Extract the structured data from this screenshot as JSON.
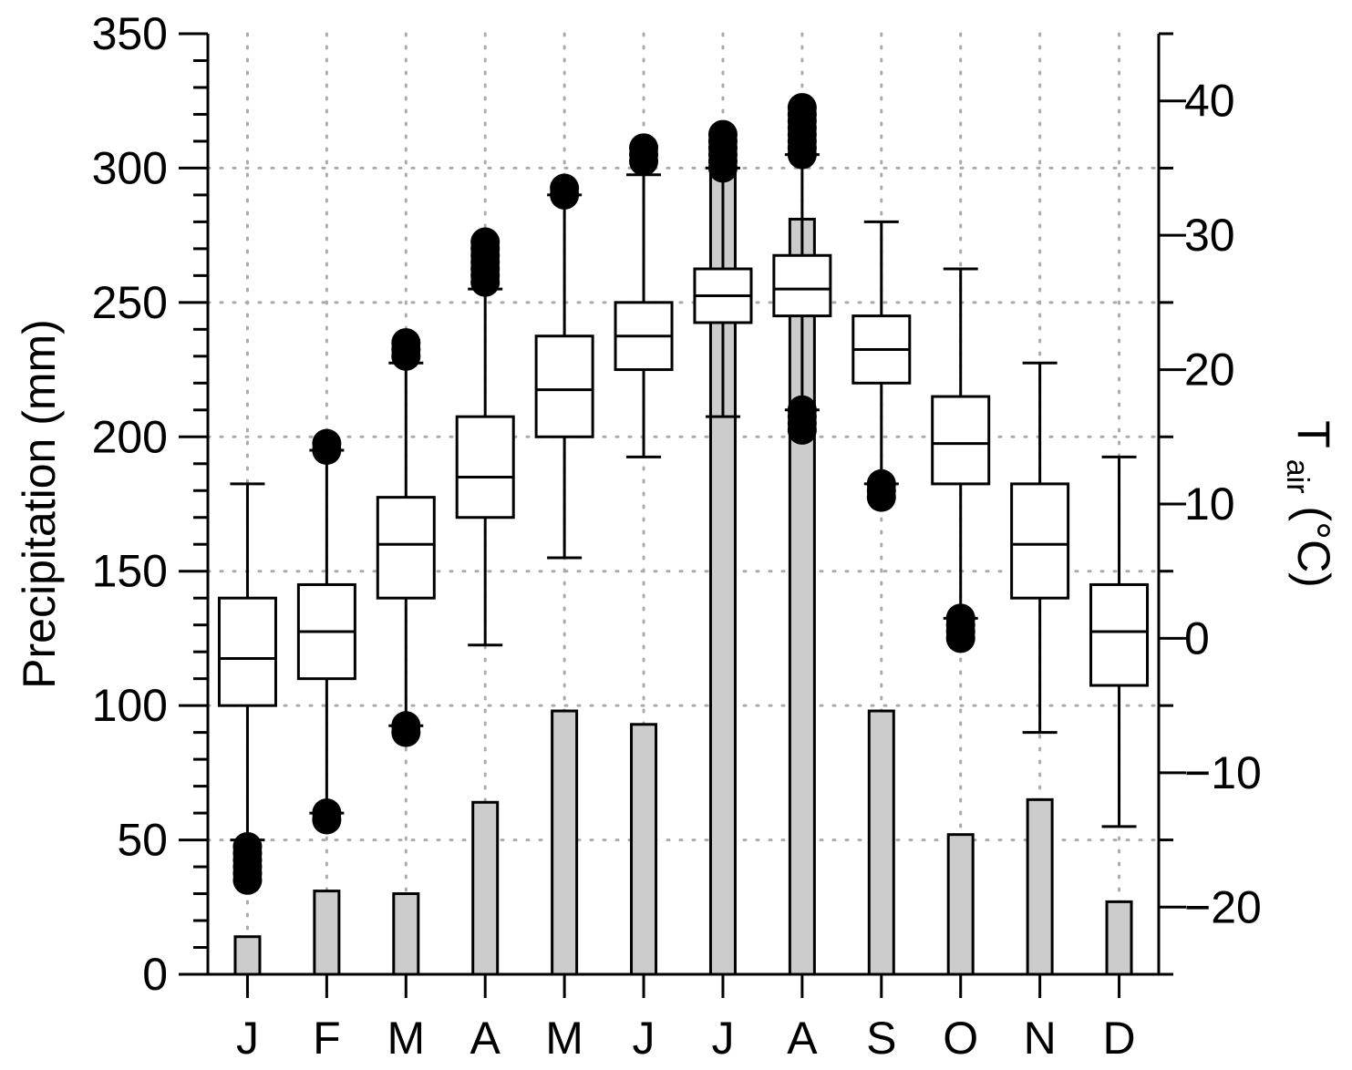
{
  "chart_data": {
    "type": "bar+box",
    "categories": [
      "J",
      "F",
      "M",
      "A",
      "M",
      "J",
      "J",
      "A",
      "S",
      "O",
      "N",
      "D"
    ],
    "title": "",
    "xlabel": "",
    "ylabel": "Precipitation (mm)",
    "ylim": [
      0,
      350
    ],
    "yticks": [
      "0",
      "50",
      "100",
      "150",
      "200",
      "250",
      "300",
      "350"
    ],
    "y2label": {
      "main": "T",
      "sub": "air",
      "unit": " (°C)"
    },
    "y2lim": [
      -25,
      45
    ],
    "y2ticks": [
      "−20",
      "−10",
      "0",
      "10",
      "20",
      "30",
      "40"
    ],
    "grid": true,
    "bar_color": "#cccccc",
    "precipitation": [
      14,
      31,
      30,
      64,
      98,
      93,
      300,
      281,
      98,
      52,
      65,
      27
    ],
    "temperature_boxes": [
      {
        "whisker_low": -15.0,
        "q1": -5.0,
        "median": -1.5,
        "q3": 3.0,
        "whisker_high": 11.5,
        "outliers": [
          -15.5,
          -16.0,
          -16.5,
          -17.0,
          -17.5,
          -18.0
        ]
      },
      {
        "whisker_low": -13.0,
        "q1": -3.0,
        "median": 0.5,
        "q3": 4.0,
        "whisker_high": 14.0,
        "outliers": [
          -13.0,
          -13.5,
          14.0,
          14.5
        ]
      },
      {
        "whisker_low": -6.5,
        "q1": 3.0,
        "median": 7.0,
        "q3": 10.5,
        "whisker_high": 20.5,
        "outliers": [
          -6.5,
          -7.0,
          21.0,
          21.5,
          22.0
        ]
      },
      {
        "whisker_low": -0.5,
        "q1": 9.0,
        "median": 12.0,
        "q3": 16.5,
        "whisker_high": 26.0,
        "outliers": [
          26.5,
          27.0,
          27.5,
          28.0,
          28.5,
          29.0,
          29.5
        ]
      },
      {
        "whisker_low": 6.0,
        "q1": 15.0,
        "median": 18.5,
        "q3": 22.5,
        "whisker_high": 33.0,
        "outliers": [
          33.0,
          33.5
        ]
      },
      {
        "whisker_low": 13.5,
        "q1": 20.0,
        "median": 22.5,
        "q3": 25.0,
        "whisker_high": 34.5,
        "outliers": [
          35.5,
          36.0,
          36.5
        ]
      },
      {
        "whisker_low": 16.5,
        "q1": 23.5,
        "median": 25.5,
        "q3": 27.5,
        "whisker_high": 35.0,
        "outliers": [
          35.0,
          35.5,
          36.0,
          36.5,
          37.0,
          37.5
        ]
      },
      {
        "whisker_low": 17.0,
        "q1": 24.0,
        "median": 26.0,
        "q3": 28.5,
        "whisker_high": 36.0,
        "outliers": [
          15.5,
          16.0,
          16.5,
          17.0,
          36.0,
          36.5,
          37.0,
          37.5,
          38.0,
          38.5,
          39.0,
          39.5
        ]
      },
      {
        "whisker_low": 11.5,
        "q1": 19.0,
        "median": 21.5,
        "q3": 24.0,
        "whisker_high": 31.0,
        "outliers": [
          10.5,
          11.0,
          11.5
        ]
      },
      {
        "whisker_low": 1.5,
        "q1": 11.5,
        "median": 14.5,
        "q3": 18.0,
        "whisker_high": 27.5,
        "outliers": [
          0.0,
          0.5,
          1.0,
          1.5
        ]
      },
      {
        "whisker_low": -7.0,
        "q1": 3.0,
        "median": 7.0,
        "q3": 11.5,
        "whisker_high": 20.5,
        "outliers": []
      },
      {
        "whisker_low": -14.0,
        "q1": -3.5,
        "median": 0.5,
        "q3": 4.0,
        "whisker_high": 13.5,
        "outliers": []
      }
    ]
  }
}
